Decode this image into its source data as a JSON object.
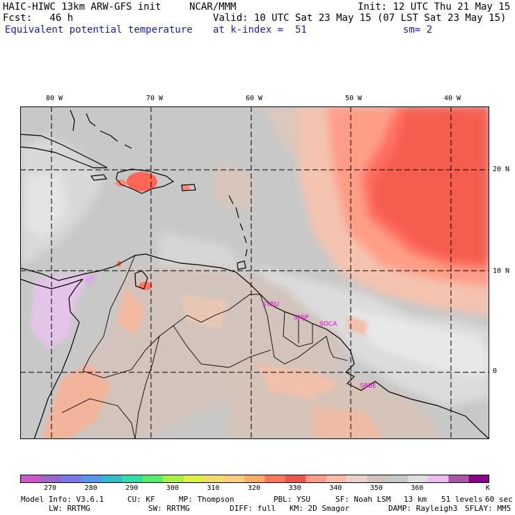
{
  "header": {
    "model": "HAIC-HIWC 13km ARW-GFS init",
    "center": "NCAR/MMM",
    "init": "Init: 12 UTC Thu 21 May 15",
    "fcst": "Fcst:   46 h",
    "valid": "Valid: 10 UTC Sat 23 May 15 (07 LST Sat 23 May 15)",
    "field": "Equivalent potential temperature",
    "level": "at k-index =  51",
    "smooth": "sm= 2"
  },
  "map": {
    "lon_labels": [
      "80 W",
      "70 W",
      "60 W",
      "50 W",
      "40 W"
    ],
    "lat_labels": [
      "20 N",
      "10 N",
      "0"
    ],
    "stations": [
      "SYBU",
      "SMJP",
      "SOCA",
      "SBBE"
    ]
  },
  "colorbar": {
    "colors": [
      "#cc55cc",
      "#9966cc",
      "#7777ee",
      "#5599ee",
      "#33bbcc",
      "#33ddaa",
      "#55ee66",
      "#aaee44",
      "#ddee44",
      "#eedd66",
      "#ffcc77",
      "#ffaa66",
      "#ff7755",
      "#ee5544",
      "#ff9988",
      "#ffbbaa",
      "#e8d4c8",
      "#d2c4bc",
      "#c8c8c8",
      "#dedede",
      "#eebbee",
      "#aa55aa",
      "#880088"
    ],
    "labels": [
      "270",
      "280",
      "290",
      "300",
      "310",
      "320",
      "330",
      "340",
      "350",
      "360"
    ],
    "unit": "K"
  },
  "footer": {
    "line1": [
      "Model Info: V3.6.1",
      "CU: KF",
      "MP: Thompson",
      "PBL: YSU",
      "SF: Noah LSM",
      "13 km",
      "51 levels",
      "60 sec"
    ],
    "line2": [
      "LW: RRTMG",
      "SW: RRTMG",
      "DIFF: full",
      "KM: 2D Smagor",
      "DAMP: Rayleigh3",
      "SFLAY: MM5"
    ]
  }
}
